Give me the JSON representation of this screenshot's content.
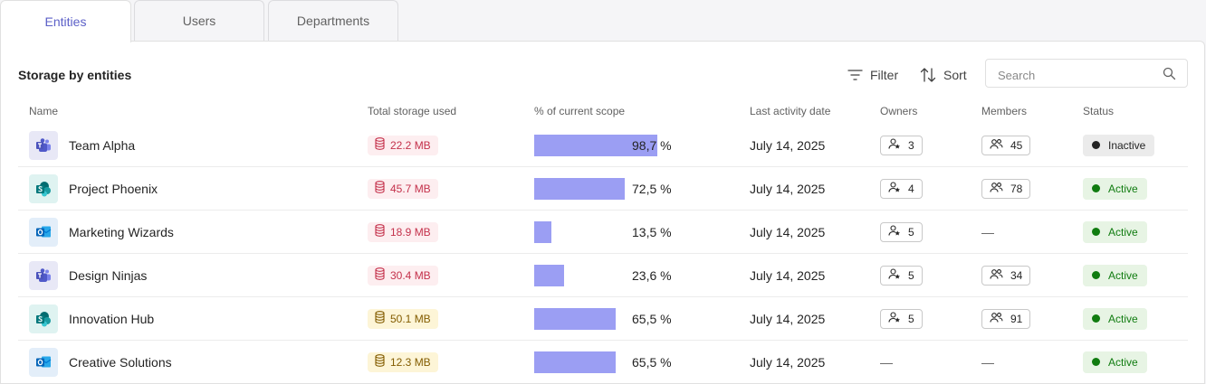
{
  "tabs": [
    {
      "label": "Entities",
      "active": true
    },
    {
      "label": "Users",
      "active": false
    },
    {
      "label": "Departments",
      "active": false
    }
  ],
  "panel": {
    "title": "Storage by entities",
    "filter_label": "Filter",
    "sort_label": "Sort",
    "search_placeholder": "Search"
  },
  "columns": [
    "Name",
    "Total storage used",
    "% of current scope",
    "Last activity date",
    "Owners",
    "Members",
    "Status"
  ],
  "colors": {
    "accent": "#5b5fc7",
    "bar": "#9b9ef3",
    "storage_red": "#c4314b",
    "storage_yellow": "#835c00",
    "active": "#107c10",
    "inactive": "#242424"
  },
  "rows": [
    {
      "icon": "teams-icon",
      "app": "teams",
      "name": "Team Alpha",
      "storage": "22.2 MB",
      "storage_level": "red",
      "scope_percent": 98.7,
      "scope_label": "98,7 %",
      "last_activity": "July 14, 2025",
      "owners": "3",
      "members": "45",
      "status": "Inactive"
    },
    {
      "icon": "sharepoint-icon",
      "app": "sharepoint",
      "name": "Project Phoenix",
      "storage": "45.7 MB",
      "storage_level": "red",
      "scope_percent": 72.5,
      "scope_label": "72,5 %",
      "last_activity": "July 14, 2025",
      "owners": "4",
      "members": "78",
      "status": "Active"
    },
    {
      "icon": "outlook-icon",
      "app": "outlook",
      "name": "Marketing Wizards",
      "storage": "18.9 MB",
      "storage_level": "red",
      "scope_percent": 13.5,
      "scope_label": "13,5 %",
      "last_activity": "July 14, 2025",
      "owners": "5",
      "members": "—",
      "status": "Active"
    },
    {
      "icon": "teams-icon",
      "app": "teams",
      "name": "Design Ninjas",
      "storage": "30.4 MB",
      "storage_level": "red",
      "scope_percent": 23.6,
      "scope_label": "23,6 %",
      "last_activity": "July 14, 2025",
      "owners": "5",
      "members": "34",
      "status": "Active"
    },
    {
      "icon": "sharepoint-icon",
      "app": "sharepoint",
      "name": "Innovation Hub",
      "storage": "50.1 MB",
      "storage_level": "yellow",
      "scope_percent": 65.5,
      "scope_label": "65,5 %",
      "last_activity": "July 14, 2025",
      "owners": "5",
      "members": "91",
      "status": "Active"
    },
    {
      "icon": "outlook-icon",
      "app": "outlook",
      "name": "Creative Solutions",
      "storage": "12.3 MB",
      "storage_level": "yellow",
      "scope_percent": 65.5,
      "scope_label": "65,5 %",
      "last_activity": "July 14, 2025",
      "owners": "—",
      "members": "—",
      "status": "Active"
    }
  ]
}
